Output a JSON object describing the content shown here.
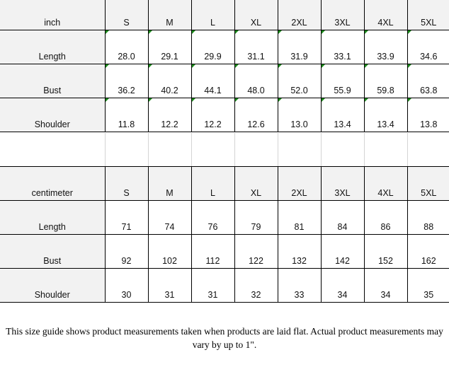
{
  "sizes": [
    "S",
    "M",
    "L",
    "XL",
    "2XL",
    "3XL",
    "4XL",
    "5XL"
  ],
  "inch": {
    "unit_label": "inch",
    "rows": [
      {
        "label": "Length",
        "values": [
          "28.0",
          "29.1",
          "29.9",
          "31.1",
          "31.9",
          "33.1",
          "33.9",
          "34.6"
        ]
      },
      {
        "label": "Bust",
        "values": [
          "36.2",
          "40.2",
          "44.1",
          "48.0",
          "52.0",
          "55.9",
          "59.8",
          "63.8"
        ]
      },
      {
        "label": "Shoulder",
        "values": [
          "11.8",
          "12.2",
          "12.2",
          "12.6",
          "13.0",
          "13.4",
          "13.4",
          "13.8"
        ]
      }
    ]
  },
  "centimeter": {
    "unit_label": "centimeter",
    "rows": [
      {
        "label": "Length",
        "values": [
          "71",
          "74",
          "76",
          "79",
          "81",
          "84",
          "86",
          "88"
        ]
      },
      {
        "label": "Bust",
        "values": [
          "92",
          "102",
          "112",
          "122",
          "132",
          "142",
          "152",
          "162"
        ]
      },
      {
        "label": "Shoulder",
        "values": [
          "30",
          "31",
          "31",
          "32",
          "33",
          "34",
          "34",
          "35"
        ]
      }
    ]
  },
  "note": "This size guide shows product measurements taken when products are laid flat. Actual product measurements may vary by up to 1\".",
  "colors": {
    "header_bg": "#f2f2f2",
    "marker": "#1a8a1a"
  }
}
